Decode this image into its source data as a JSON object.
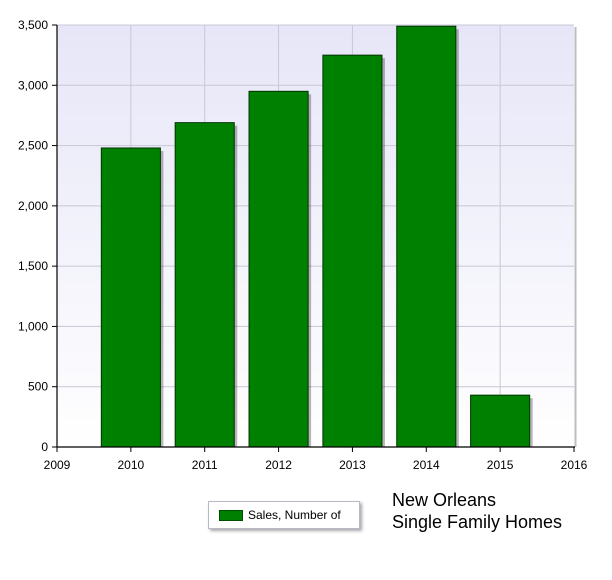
{
  "chart_data": {
    "type": "bar",
    "categories": [
      "2010",
      "2011",
      "2012",
      "2013",
      "2014",
      "2015"
    ],
    "x": [
      2010,
      2011,
      2012,
      2013,
      2014,
      2015
    ],
    "series": [
      {
        "name": "Sales, Number of",
        "values": [
          2480,
          2690,
          2950,
          3250,
          3490,
          430
        ]
      }
    ],
    "xlim": [
      2009,
      2016
    ],
    "xticks": [
      "2009",
      "2010",
      "2011",
      "2012",
      "2013",
      "2014",
      "2015",
      "2016"
    ],
    "ylim": [
      0,
      3500
    ],
    "yticks": [
      "0",
      "500",
      "1,000",
      "1,500",
      "2,000",
      "2,500",
      "3,000",
      "3,500"
    ],
    "grid": true,
    "legend_position": "bottom",
    "colors": {
      "bar": "#008000",
      "bar_edge": "#003300",
      "plot_bg_top": "#e6e6f8",
      "plot_bg_bottom": "#ffffff",
      "grid": "#c8c8d6"
    }
  },
  "legend": {
    "label": "Sales, Number of"
  },
  "caption": {
    "line1": "New Orleans",
    "line2": "Single Family Homes"
  }
}
